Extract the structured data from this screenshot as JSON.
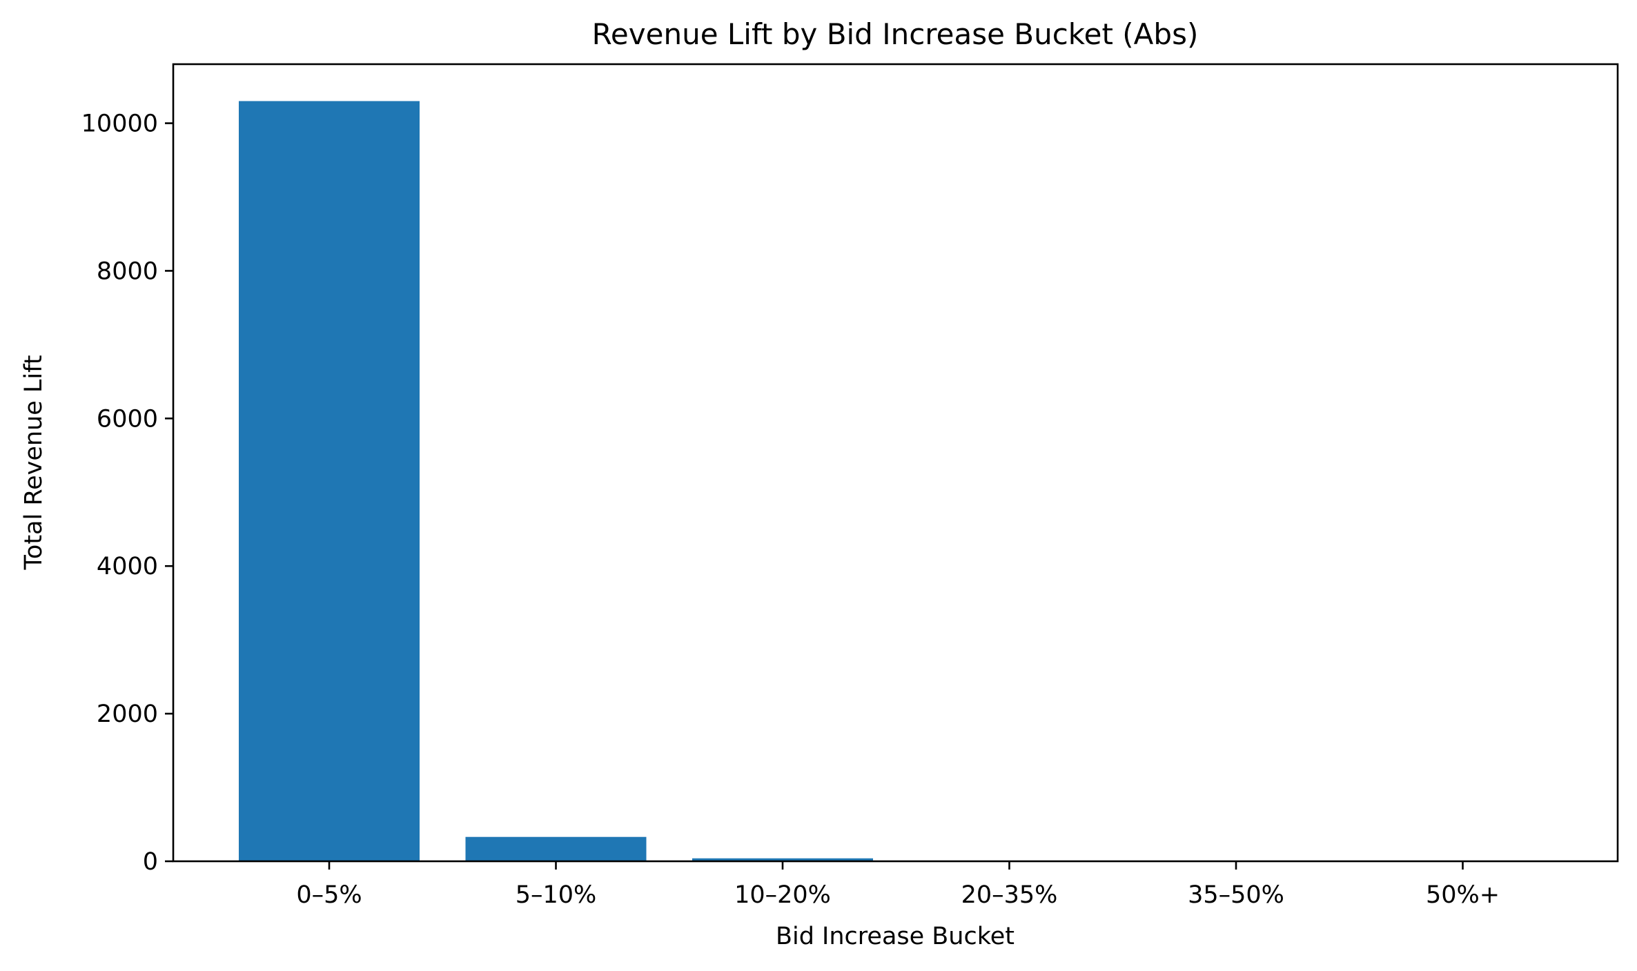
{
  "chart_data": {
    "type": "bar",
    "title": "Revenue Lift by Bid Increase Bucket (Abs)",
    "xlabel": "Bid Increase Bucket",
    "ylabel": "Total Revenue Lift",
    "categories": [
      "0–5%",
      "5–10%",
      "10–20%",
      "20–35%",
      "35–50%",
      "50%+"
    ],
    "values": [
      10300,
      330,
      40,
      5,
      2,
      1
    ],
    "ylim": [
      0,
      10800
    ],
    "yticks": [
      0,
      2000,
      4000,
      6000,
      8000,
      10000
    ],
    "ytick_labels": [
      "0",
      "2000",
      "4000",
      "6000",
      "8000",
      "10000"
    ],
    "grid": false,
    "bar_color": "#1f77b4"
  }
}
